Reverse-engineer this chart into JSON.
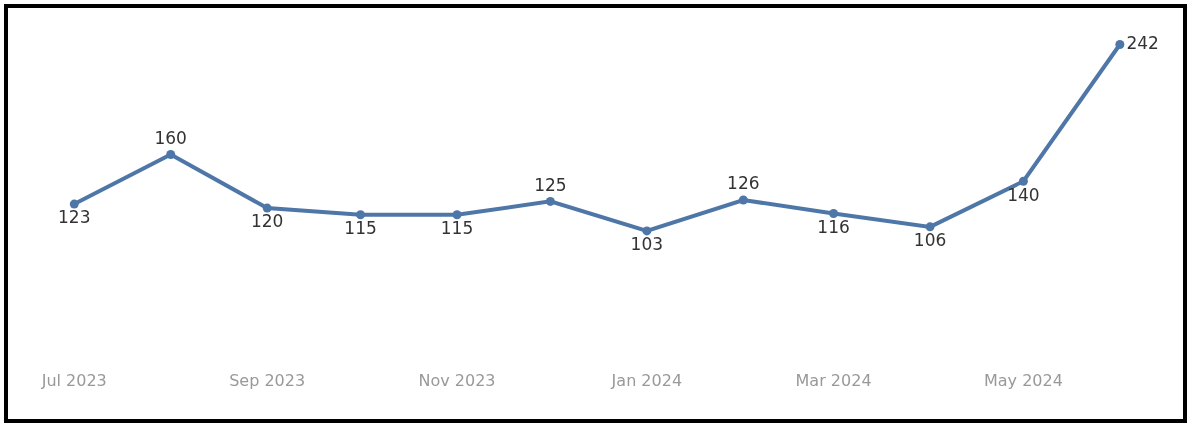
{
  "chart_data": {
    "type": "line",
    "x": [
      "2023-07",
      "2023-08",
      "2023-09",
      "2023-10",
      "2023-11",
      "2023-12",
      "2024-01",
      "2024-02",
      "2024-03",
      "2024-04",
      "2024-05",
      "2024-06"
    ],
    "values": [
      123,
      160,
      120,
      115,
      115,
      125,
      103,
      126,
      116,
      106,
      140,
      242
    ],
    "color": "#4e77a8",
    "xlim": [
      "2023-06-11",
      "2024-06-20"
    ],
    "xticks": [
      {
        "value": "2023-07",
        "label": "Jul 2023"
      },
      {
        "value": "2023-09",
        "label": "Sep 2023"
      },
      {
        "value": "2023-11",
        "label": "Nov 2023"
      },
      {
        "value": "2024-01",
        "label": "Jan 2024"
      },
      {
        "value": "2024-03",
        "label": "Mar 2024"
      },
      {
        "value": "2024-05",
        "label": "May 2024"
      }
    ],
    "tick_labels": "x",
    "data_labels": true,
    "marker": "circle",
    "line_style": "solid",
    "grid": false,
    "legend": false
  }
}
